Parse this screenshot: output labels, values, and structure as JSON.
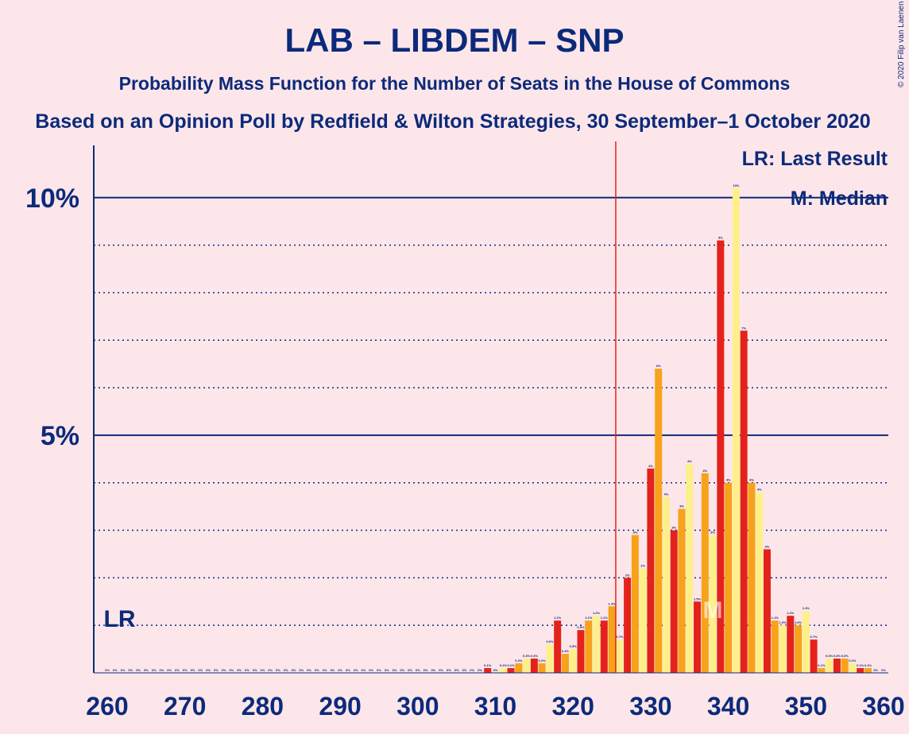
{
  "chart_data": {
    "type": "bar",
    "title": "LAB – LIBDEM – SNP",
    "subtitle": "Probability Mass Function for the Number of Seats in the House of Commons",
    "source": "Based on an Opinion Poll by Redfield & Wilton Strategies, 30 September–1 October 2020",
    "copyright": "© 2020 Filip van Laenen",
    "legend_items": [
      "LR: Last Result",
      "M: Median"
    ],
    "last_result_label": "LR",
    "last_result": 262,
    "median_label": "M",
    "median": 338,
    "majority": 326,
    "colors": [
      "#e3231b",
      "#f7a21b",
      "#fdf08a"
    ],
    "categories": [
      260,
      261,
      262,
      263,
      264,
      265,
      266,
      267,
      268,
      269,
      270,
      271,
      272,
      273,
      274,
      275,
      276,
      277,
      278,
      279,
      280,
      281,
      282,
      283,
      284,
      285,
      286,
      287,
      288,
      289,
      290,
      291,
      292,
      293,
      294,
      295,
      296,
      297,
      298,
      299,
      300,
      301,
      302,
      303,
      304,
      305,
      306,
      307,
      308,
      309,
      310,
      311,
      312,
      313,
      314,
      315,
      316,
      317,
      318,
      319,
      320,
      321,
      322,
      323,
      324,
      325,
      326,
      327,
      328,
      329,
      330,
      331,
      332,
      333,
      334,
      335,
      336,
      337,
      338,
      339,
      340,
      341,
      342,
      343,
      344,
      345,
      346,
      347,
      348,
      349,
      350,
      351,
      352,
      353,
      354,
      355,
      356,
      357,
      358,
      359,
      360
    ],
    "values": [
      0,
      0,
      0,
      0,
      0,
      0,
      0,
      0,
      0,
      0,
      0,
      0,
      0,
      0,
      0,
      0,
      0,
      0,
      0,
      0,
      0,
      0,
      0,
      0,
      0,
      0,
      0,
      0,
      0,
      0,
      0,
      0,
      0,
      0,
      0,
      0,
      0,
      0,
      0,
      0,
      0,
      0,
      0,
      0,
      0,
      0,
      0,
      0,
      0,
      0.1,
      0,
      0.1,
      0.1,
      0.2,
      0.3,
      0.3,
      0.2,
      0.6,
      1.1,
      0.4,
      0.5,
      0.9,
      1.1,
      1.2,
      1.1,
      1.4,
      0.7,
      2.0,
      2.9,
      2.2,
      4.3,
      6.4,
      3.7,
      3.0,
      3.45,
      4.4,
      1.5,
      4.2,
      2.9,
      9.1,
      4.0,
      10.2,
      7.2,
      4.0,
      3.8,
      2.6,
      1.1,
      1.0,
      1.2,
      1.0,
      1.3,
      0.7,
      0.1,
      0.3,
      0.3,
      0.3,
      0.2,
      0.1,
      0.1,
      0,
      0
    ],
    "value_labels": [
      "0%",
      "0%",
      "0%",
      "0%",
      "0%",
      "0%",
      "0%",
      "0%",
      "0%",
      "0%",
      "0%",
      "0%",
      "0%",
      "0%",
      "0%",
      "0%",
      "0%",
      "0%",
      "0%",
      "0%",
      "0%",
      "0%",
      "0%",
      "0%",
      "0%",
      "0%",
      "0%",
      "0%",
      "0%",
      "0%",
      "0%",
      "0%",
      "0%",
      "0%",
      "0%",
      "0%",
      "0%",
      "0%",
      "0%",
      "0%",
      "0%",
      "0%",
      "0%",
      "0%",
      "0%",
      "0%",
      "0%",
      "0%",
      "0%",
      "0.1%",
      "0%",
      "0.1%",
      "0.1%",
      "0.2%",
      "0.3%",
      "0.3%",
      "0.2%",
      "0.6%",
      "1.1%",
      "0.4%",
      "0.5%",
      "0.9%",
      "1.1%",
      "1.2%",
      "1.1%",
      "1.4%",
      "0.7%",
      "2%",
      "3%",
      "2%",
      "4%",
      "6%",
      "4%",
      "3%",
      "3%",
      "4%",
      "1.5%",
      "4%",
      "3%",
      "9%",
      "4%",
      "10%",
      "7%",
      "4%",
      "4%",
      "3%",
      "1.1%",
      "1.0%",
      "1.2%",
      "1.0%",
      "1.3%",
      "0.7%",
      "0.1%",
      "0.3%",
      "0.3%",
      "0.3%",
      "0.2%",
      "0.1%",
      "0.1%",
      "0%",
      "0%"
    ],
    "xlim": [
      260,
      360
    ],
    "xticks": [
      260,
      270,
      280,
      290,
      300,
      310,
      320,
      330,
      340,
      350,
      360
    ],
    "ylim": [
      0,
      11.1
    ],
    "yticks": [
      {
        "value": 5,
        "label": "5%"
      },
      {
        "value": 10,
        "label": "10%"
      }
    ],
    "minor_yticks": [
      1,
      2,
      3,
      4,
      6,
      7,
      8,
      9
    ]
  }
}
